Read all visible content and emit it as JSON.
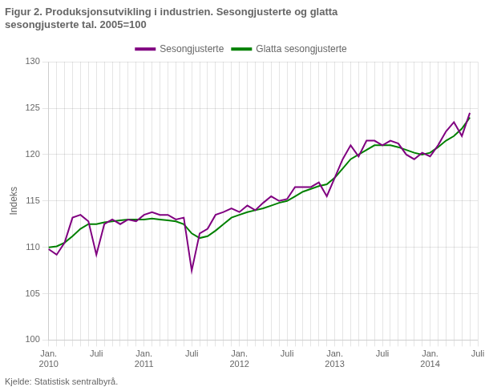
{
  "chart_data": {
    "type": "line",
    "title": "Figur 2. Produksjonsutvikling i industrien. Sesongjusterte og glatta\nsesongjusterte tal. 2005=100",
    "ylabel": "Indeks",
    "annotations": [
      "Kjelde: Statistisk sentralbyrå."
    ],
    "categories": [
      "Jan.\n2010",
      null,
      null,
      null,
      null,
      null,
      "Juli",
      null,
      null,
      null,
      null,
      null,
      "Jan.\n2011",
      null,
      null,
      null,
      null,
      null,
      "Juli",
      null,
      null,
      null,
      null,
      null,
      "Jan.\n2012",
      null,
      null,
      null,
      null,
      null,
      "Juli",
      null,
      null,
      null,
      null,
      null,
      "Jan.\n2013",
      null,
      null,
      null,
      null,
      null,
      "Juli",
      null,
      null,
      null,
      null,
      null,
      "Jan.\n2014",
      null,
      null,
      null,
      null,
      null,
      "Juli"
    ],
    "series": [
      {
        "name": "Sesongjusterte",
        "color": "#800080",
        "values": [
          109.8,
          109.2,
          110.5,
          113.2,
          113.5,
          112.8,
          109.2,
          112.5,
          113.0,
          112.5,
          113.0,
          112.8,
          113.5,
          113.8,
          113.5,
          113.5,
          113.0,
          113.2,
          107.5,
          111.5,
          112.0,
          113.5,
          113.8,
          114.2,
          113.8,
          114.5,
          114.0,
          114.8,
          115.5,
          115.0,
          115.2,
          116.5,
          116.5,
          116.5,
          117.0,
          115.5,
          117.5,
          119.5,
          121.0,
          119.8,
          121.5,
          121.5,
          121.0,
          121.5,
          121.2,
          120.0,
          119.5,
          120.2,
          119.8,
          121.0,
          122.5,
          123.5,
          122.0,
          124.5,
          null
        ]
      },
      {
        "name": "Glatta sesongjusterte",
        "color": "#008000",
        "values": [
          110.0,
          110.1,
          110.5,
          111.2,
          112.0,
          112.5,
          112.5,
          112.7,
          112.8,
          112.9,
          113.0,
          113.0,
          113.0,
          113.1,
          113.0,
          112.9,
          112.8,
          112.5,
          111.5,
          111.0,
          111.2,
          111.8,
          112.5,
          113.2,
          113.5,
          113.8,
          114.0,
          114.2,
          114.5,
          114.8,
          115.0,
          115.5,
          116.0,
          116.3,
          116.6,
          116.8,
          117.5,
          118.5,
          119.5,
          120.0,
          120.5,
          121.0,
          121.0,
          121.0,
          120.8,
          120.5,
          120.2,
          120.0,
          120.2,
          120.8,
          121.5,
          122.0,
          122.8,
          124.0,
          null
        ]
      }
    ],
    "ylim": [
      100,
      130
    ],
    "yticks": [
      100,
      105,
      110,
      115,
      120,
      125,
      130
    ],
    "grid": true,
    "legend": "top"
  }
}
